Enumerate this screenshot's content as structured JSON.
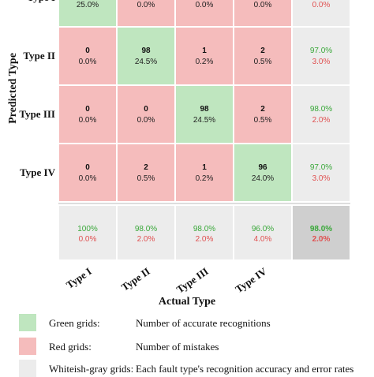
{
  "chart_data": {
    "type": "heatmap",
    "xlabel": "Actual Type",
    "ylabel": "Predicted Type",
    "categories": [
      "Type I",
      "Type II",
      "Type III",
      "Type IV"
    ],
    "matrix": [
      {
        "counts": [
          "",
          "",
          "",
          ""
        ],
        "percents": [
          "25.0%",
          "0.0%",
          "0.0%",
          "0.0%"
        ],
        "summary": [
          "",
          "0.0%"
        ]
      },
      {
        "counts": [
          "0",
          "98",
          "1",
          "2"
        ],
        "percents": [
          "0.0%",
          "24.5%",
          "0.2%",
          "0.5%"
        ],
        "summary": [
          "97.0%",
          "3.0%"
        ]
      },
      {
        "counts": [
          "0",
          "0",
          "98",
          "2"
        ],
        "percents": [
          "0.0%",
          "0.0%",
          "24.5%",
          "0.5%"
        ],
        "summary": [
          "98.0%",
          "2.0%"
        ]
      },
      {
        "counts": [
          "0",
          "2",
          "1",
          "96"
        ],
        "percents": [
          "0.0%",
          "0.5%",
          "0.2%",
          "24.0%"
        ],
        "summary": [
          "97.0%",
          "3.0%"
        ]
      }
    ],
    "column_summary": [
      {
        "accuracy": "100%",
        "error": "0.0%"
      },
      {
        "accuracy": "98.0%",
        "error": "2.0%"
      },
      {
        "accuracy": "98.0%",
        "error": "2.0%"
      },
      {
        "accuracy": "96.0%",
        "error": "4.0%"
      }
    ],
    "overall": {
      "accuracy": "98.0%",
      "error": "2.0%"
    },
    "row_labels": [
      "Type I",
      "Type II",
      "Type III",
      "Type IV"
    ]
  },
  "legend": [
    {
      "label": "Green grids:",
      "description": "Number of accurate recognitions",
      "color": "#bfe6bf"
    },
    {
      "label": "Red grids:",
      "description": "Number of mistakes",
      "color": "#f5bcbc"
    },
    {
      "label": "Whiteish-gray grids:",
      "description": "Each fault type's recognition accuracy and error rates",
      "color": "#ececec"
    }
  ],
  "colors": {
    "correct": "#bfe6bf",
    "wrong": "#f5bcbc",
    "summary": "#ececec",
    "overall": "#cfcfcf",
    "green_text": "#3aa83a",
    "red_text": "#e05050"
  }
}
